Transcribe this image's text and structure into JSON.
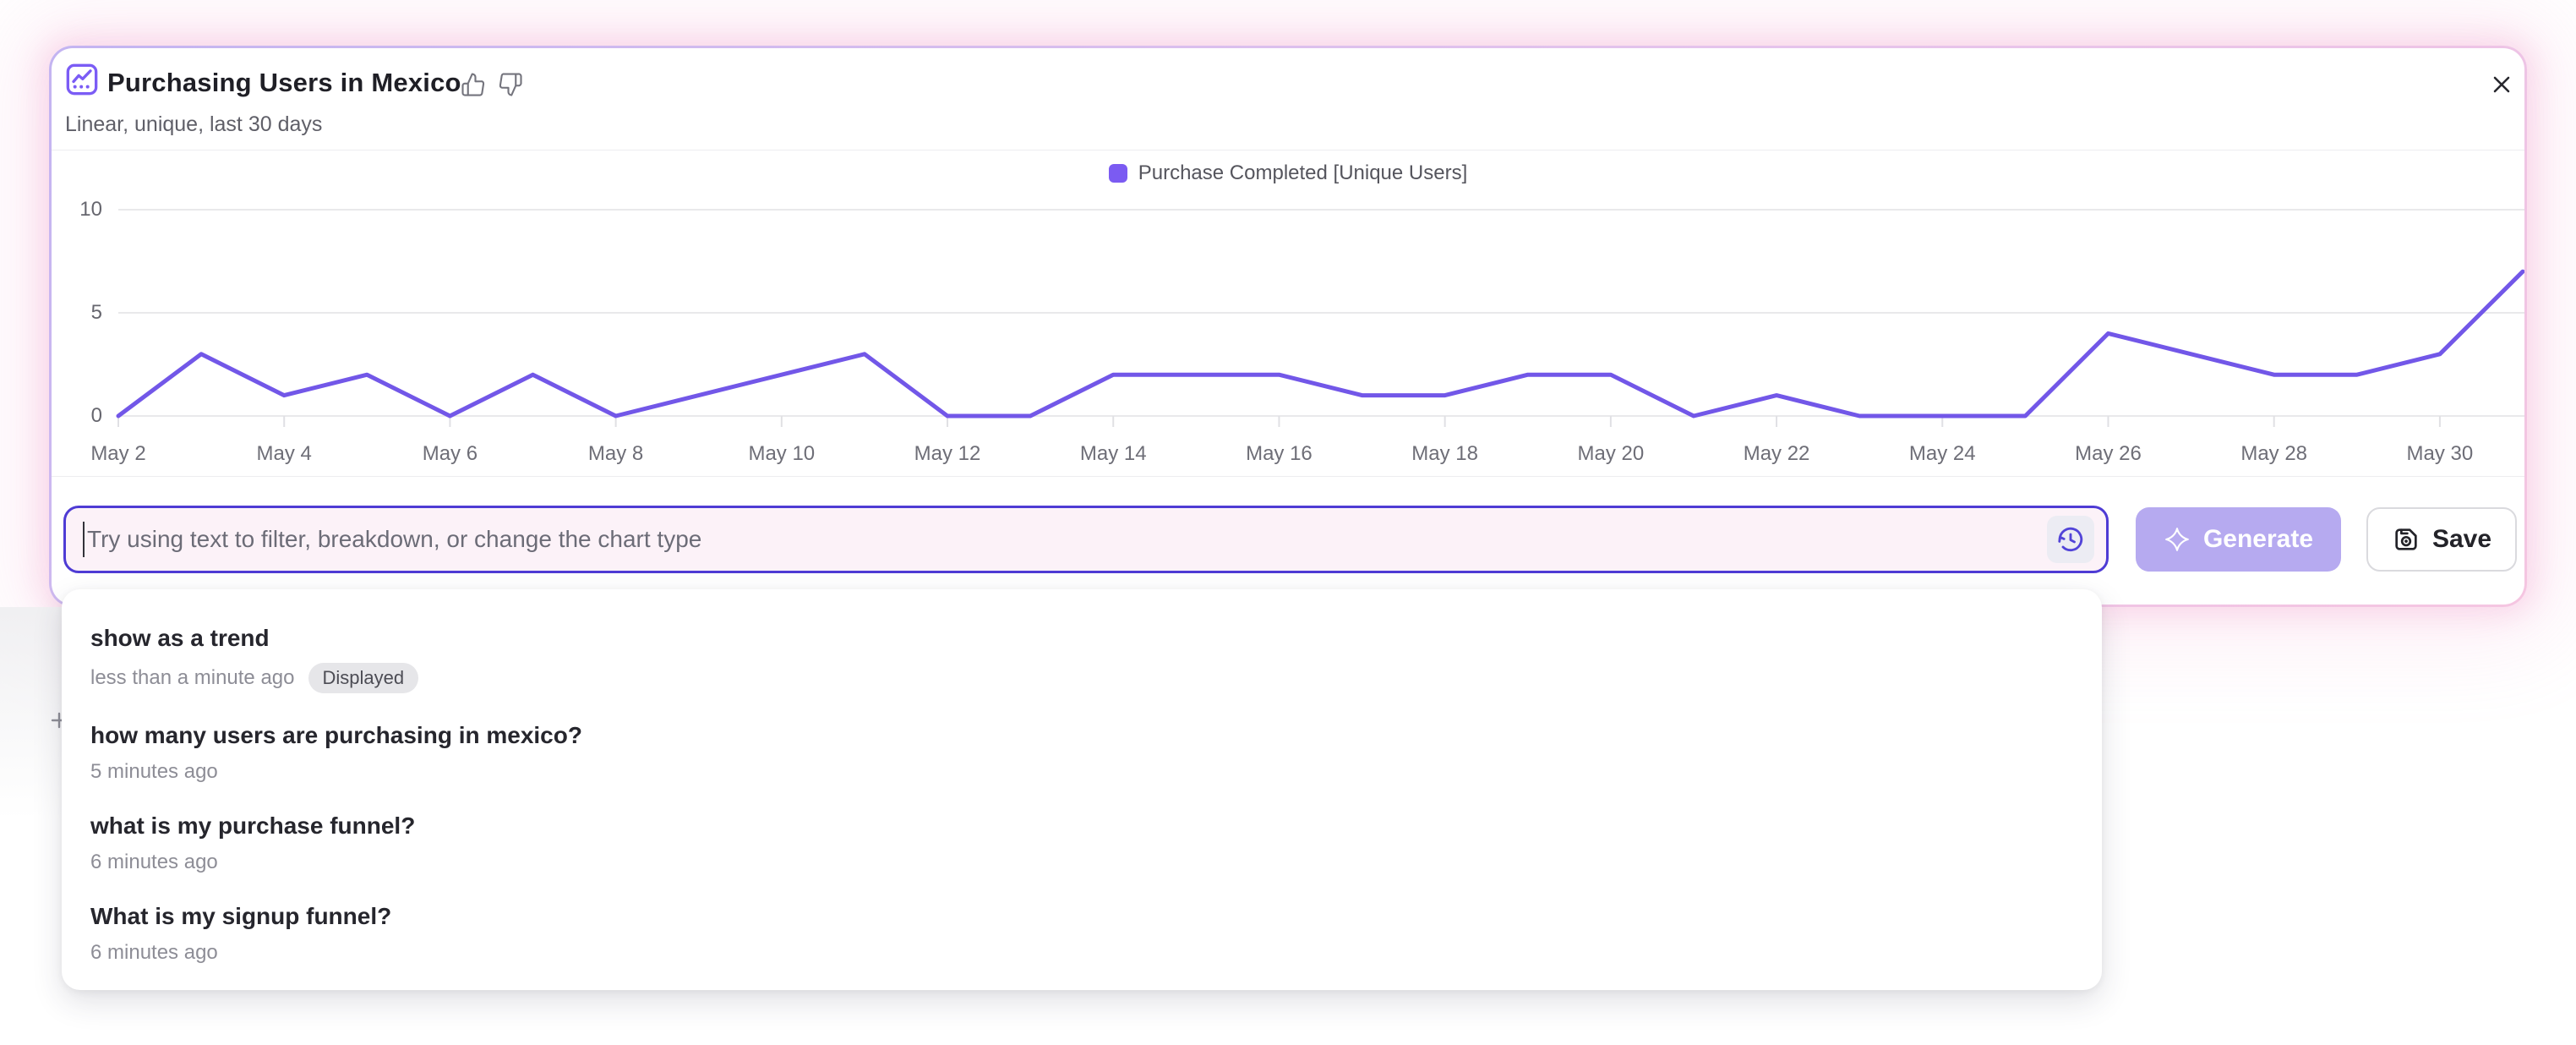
{
  "card": {
    "title": "Purchasing Users in Mexico",
    "subtitle": "Linear, unique, last 30 days"
  },
  "chart_data": {
    "type": "line",
    "title": "Purchasing Users in Mexico",
    "x": [
      "May 2",
      "May 3",
      "May 4",
      "May 5",
      "May 6",
      "May 7",
      "May 8",
      "May 9",
      "May 10",
      "May 11",
      "May 12",
      "May 13",
      "May 14",
      "May 15",
      "May 16",
      "May 17",
      "May 18",
      "May 19",
      "May 20",
      "May 21",
      "May 22",
      "May 23",
      "May 24",
      "May 25",
      "May 26",
      "May 27",
      "May 28",
      "May 29",
      "May 30",
      "May 31"
    ],
    "series": [
      {
        "name": "Purchase Completed [Unique Users]",
        "values": [
          0,
          3,
          1,
          2,
          0,
          2,
          0,
          1,
          2,
          3,
          0,
          0,
          2,
          2,
          2,
          1,
          1,
          2,
          2,
          0,
          1,
          0,
          0,
          0,
          4,
          3,
          2,
          2,
          3,
          7
        ]
      }
    ],
    "x_tick_labels": [
      "May 2",
      "May 4",
      "May 6",
      "May 8",
      "May 10",
      "May 12",
      "May 14",
      "May 16",
      "May 18",
      "May 20",
      "May 22",
      "May 24",
      "May 26",
      "May 28",
      "May 30"
    ],
    "yticks": [
      0,
      5,
      10
    ],
    "ylim": [
      0,
      10
    ],
    "grid": true,
    "legend_position": "top-center",
    "line_color": "#7257E8",
    "legend_swatch_color": "#7B5BF2"
  },
  "prompt_bar": {
    "placeholder": "Try using text to filter, breakdown, or change the chart type",
    "generate_label": "Generate",
    "save_label": "Save"
  },
  "history_dropdown": {
    "items": [
      {
        "query": "show as a trend",
        "time": "less than a minute ago",
        "badge": "Displayed"
      },
      {
        "query": "how many users are purchasing in mexico?",
        "time": "5 minutes ago",
        "badge": null
      },
      {
        "query": "what is my purchase funnel?",
        "time": "6 minutes ago",
        "badge": null
      },
      {
        "query": "What is my signup funnel?",
        "time": "6 minutes ago",
        "badge": null
      }
    ]
  },
  "colors": {
    "accent_purple": "#4e3bd4",
    "generate_bg": "#b6aaf0",
    "input_bg": "#fcf2f8",
    "grid_line": "#e9e9eb",
    "axis_text": "#6e6e77"
  }
}
